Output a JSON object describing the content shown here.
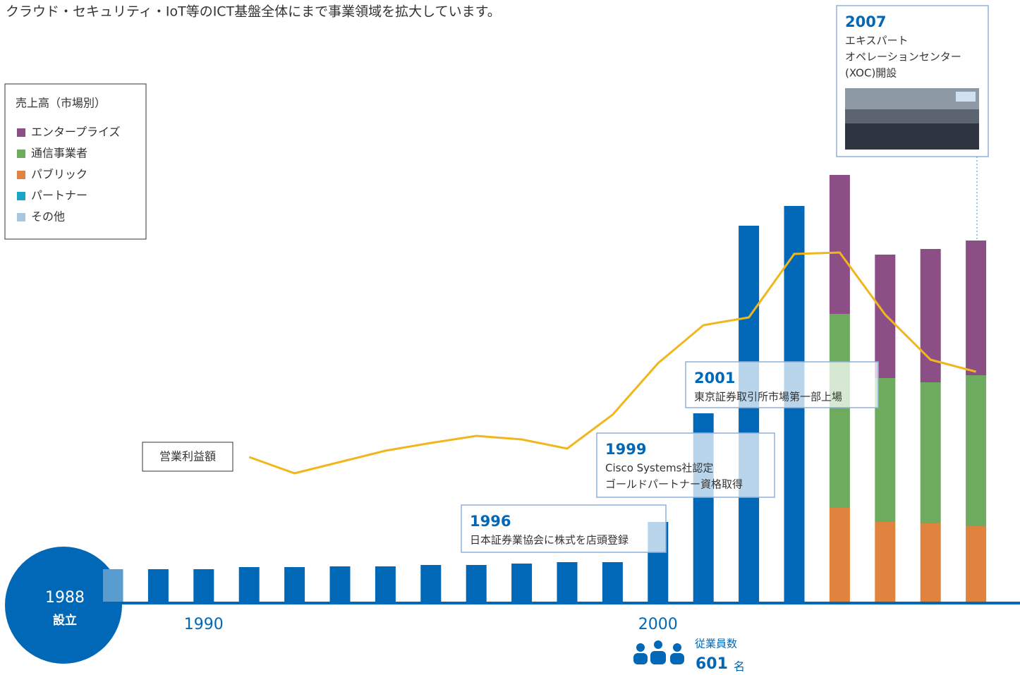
{
  "header": "クラウド・セキュリティ・IoT等のICT基盤全体にまで事業領域を拡大しています。",
  "chart_data": {
    "type": "bar",
    "categories": [
      null,
      null,
      "1990",
      null,
      null,
      null,
      null,
      null,
      null,
      null,
      null,
      null,
      "2000",
      null,
      null,
      null,
      null,
      null,
      null,
      null
    ],
    "values": [
      48,
      48,
      48,
      51,
      51,
      52,
      52,
      54,
      54,
      56,
      58,
      58,
      115,
      269,
      535,
      563,
      null,
      null,
      null,
      null
    ],
    "color": "#0068b7",
    "ylim": [
      0,
      620
    ],
    "legend_title": "売上高（市場別）",
    "legend": "upper left",
    "series": [
      {
        "name": "エンタープライズ",
        "color": "#8b4f86",
        "values": [
          null,
          null,
          null,
          null,
          null,
          null,
          null,
          null,
          null,
          null,
          null,
          null,
          null,
          null,
          null,
          null,
          197,
          175,
          189,
          191
        ]
      },
      {
        "name": "通信事業者",
        "color": "#6fab5f",
        "values": [
          null,
          null,
          null,
          null,
          null,
          null,
          null,
          null,
          null,
          null,
          null,
          null,
          null,
          null,
          null,
          null,
          275,
          204,
          200,
          214
        ]
      },
      {
        "name": "パブリック",
        "color": "#e0833f",
        "values": [
          null,
          null,
          null,
          null,
          null,
          null,
          null,
          null,
          null,
          null,
          null,
          null,
          null,
          null,
          null,
          null,
          135,
          115,
          113,
          109
        ]
      },
      {
        "name": "パートナー",
        "color": "#1ba5c8",
        "values": [
          null,
          null,
          null,
          null,
          null,
          null,
          null,
          null,
          null,
          null,
          null,
          null,
          null,
          null,
          null,
          null,
          null,
          null,
          null,
          null
        ]
      },
      {
        "name": "その他",
        "color": "#a9c6e0",
        "values": [
          null,
          null,
          null,
          null,
          null,
          null,
          null,
          null,
          null,
          null,
          null,
          null,
          null,
          null,
          null,
          null,
          null,
          null,
          null,
          null
        ]
      }
    ],
    "line": {
      "name": "営業利益額",
      "color": "#f2b61d",
      "values": [
        null,
        null,
        null,
        207,
        184,
        200,
        216,
        227,
        237,
        232,
        219,
        267,
        340,
        394,
        405,
        495,
        497,
        409,
        345,
        328
      ]
    },
    "founding": {
      "year": "1988",
      "label": "設立"
    },
    "annotations": [
      {
        "year": "1996",
        "lines": [
          "日本証券業協会に株式を店頭登録"
        ]
      },
      {
        "year": "1999",
        "lines": [
          "Cisco Systems社認定",
          "ゴールドパートナー資格取得"
        ]
      },
      {
        "year": "2001",
        "lines": [
          "東京証券取引所市場第一部上場"
        ]
      },
      {
        "year": "2007",
        "lines": [
          "エキスパート",
          "オペレーションセンター",
          "(XOC)開設"
        ]
      }
    ],
    "employees": {
      "label": "従業員数",
      "count": "601",
      "unit": "名"
    }
  }
}
